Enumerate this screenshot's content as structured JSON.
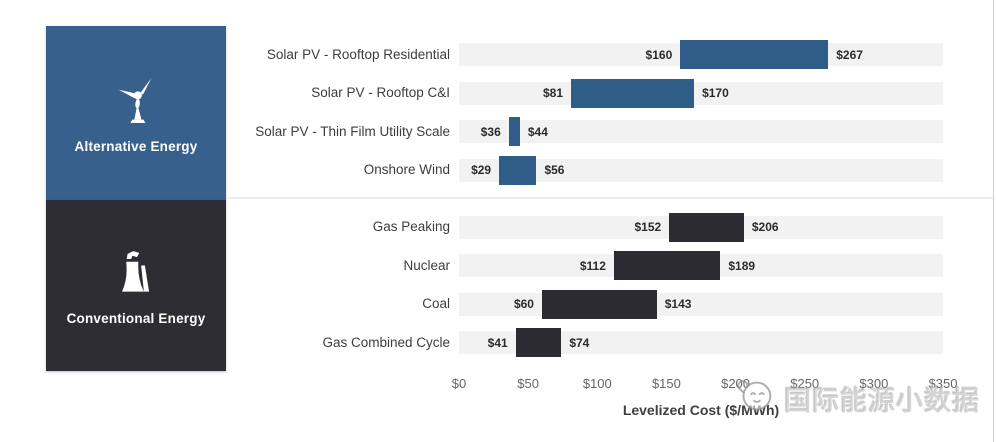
{
  "sidebar": {
    "groups": [
      {
        "label": "Alternative Energy",
        "icon": "wind-turbine-icon",
        "color": "#37618c"
      },
      {
        "label": "Conventional Energy",
        "icon": "power-plant-icon",
        "color": "#2e2d34"
      }
    ]
  },
  "chart_data": {
    "type": "bar",
    "subtype": "horizontal-range",
    "xlabel": "Levelized Cost ($/MWh)",
    "xlim": [
      0,
      350
    ],
    "x_tick_values": [
      0,
      50,
      100,
      150,
      200,
      250,
      300,
      350
    ],
    "x_tick_labels": [
      "$0",
      "$50",
      "$100",
      "$150",
      "$200",
      "$250",
      "$300",
      "$350"
    ],
    "grid": false,
    "track_color": "#f3f2f3",
    "groups": [
      {
        "name": "Alternative Energy",
        "bar_color": "#2f5d88",
        "rows": [
          {
            "label": "Solar PV - Rooftop Residential",
            "min": 160,
            "max": 267,
            "min_label": "$160",
            "max_label": "$267"
          },
          {
            "label": "Solar PV - Rooftop C&I",
            "min": 81,
            "max": 170,
            "min_label": "$81",
            "max_label": "$170"
          },
          {
            "label": "Solar PV - Thin Film Utility Scale",
            "min": 36,
            "max": 44,
            "min_label": "$36",
            "max_label": "$44"
          },
          {
            "label": "Onshore Wind",
            "min": 29,
            "max": 56,
            "min_label": "$29",
            "max_label": "$56"
          }
        ]
      },
      {
        "name": "Conventional Energy",
        "bar_color": "#2c2b32",
        "rows": [
          {
            "label": "Gas Peaking",
            "min": 152,
            "max": 206,
            "min_label": "$152",
            "max_label": "$206"
          },
          {
            "label": "Nuclear",
            "min": 112,
            "max": 189,
            "min_label": "$112",
            "max_label": "$189"
          },
          {
            "label": "Coal",
            "min": 60,
            "max": 143,
            "min_label": "$60",
            "max_label": "$143"
          },
          {
            "label": "Gas Combined Cycle",
            "min": 41,
            "max": 74,
            "min_label": "$41",
            "max_label": "$74"
          }
        ]
      }
    ]
  },
  "watermark": {
    "text": "国际能源小数据",
    "logo": "mascot-logo"
  }
}
